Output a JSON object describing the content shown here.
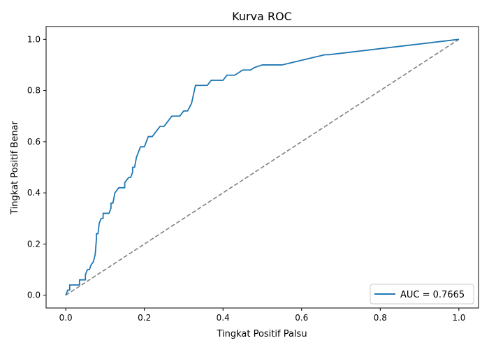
{
  "chart_data": {
    "type": "line",
    "title": "Kurva ROC",
    "xlabel": "Tingkat Positif Palsu",
    "ylabel": "Tingkat Positif Benar",
    "xlim": [
      -0.05,
      1.05
    ],
    "ylim": [
      -0.05,
      1.05
    ],
    "x_ticks": [
      "0.0",
      "0.2",
      "0.4",
      "0.6",
      "0.8",
      "1.0"
    ],
    "y_ticks": [
      "0.0",
      "0.2",
      "0.4",
      "0.6",
      "0.8",
      "1.0"
    ],
    "grid": false,
    "legend_position": "lower-right",
    "series": [
      {
        "name": "AUC = 0.7665",
        "color": "#1f77b4",
        "style": "solid",
        "x": [
          0.0,
          0.005,
          0.005,
          0.01,
          0.01,
          0.035,
          0.035,
          0.05,
          0.05,
          0.055,
          0.06,
          0.065,
          0.07,
          0.075,
          0.075,
          0.078,
          0.078,
          0.082,
          0.085,
          0.09,
          0.095,
          0.095,
          0.1,
          0.11,
          0.115,
          0.115,
          0.12,
          0.125,
          0.13,
          0.135,
          0.14,
          0.15,
          0.15,
          0.155,
          0.16,
          0.165,
          0.17,
          0.17,
          0.175,
          0.18,
          0.185,
          0.19,
          0.2,
          0.205,
          0.21,
          0.21,
          0.22,
          0.23,
          0.24,
          0.245,
          0.25,
          0.26,
          0.27,
          0.275,
          0.29,
          0.295,
          0.3,
          0.31,
          0.32,
          0.33,
          0.34,
          0.35,
          0.36,
          0.37,
          0.39,
          0.4,
          0.41,
          0.42,
          0.43,
          0.44,
          0.45,
          0.46,
          0.47,
          0.48,
          0.5,
          0.51,
          0.55,
          0.66,
          0.67,
          1.0
        ],
        "y": [
          0.0,
          0.02,
          0.02,
          0.02,
          0.04,
          0.04,
          0.06,
          0.06,
          0.08,
          0.1,
          0.1,
          0.12,
          0.13,
          0.16,
          0.16,
          0.22,
          0.24,
          0.24,
          0.28,
          0.3,
          0.3,
          0.32,
          0.32,
          0.32,
          0.34,
          0.36,
          0.36,
          0.4,
          0.41,
          0.42,
          0.42,
          0.42,
          0.44,
          0.45,
          0.46,
          0.46,
          0.48,
          0.5,
          0.5,
          0.54,
          0.56,
          0.58,
          0.58,
          0.6,
          0.62,
          0.62,
          0.62,
          0.64,
          0.66,
          0.66,
          0.66,
          0.68,
          0.7,
          0.7,
          0.7,
          0.71,
          0.72,
          0.72,
          0.75,
          0.82,
          0.82,
          0.82,
          0.82,
          0.84,
          0.84,
          0.84,
          0.86,
          0.86,
          0.86,
          0.87,
          0.88,
          0.88,
          0.88,
          0.89,
          0.9,
          0.9,
          0.9,
          0.94,
          0.94,
          1.0
        ]
      },
      {
        "name": "",
        "color": "#808080",
        "style": "dashed",
        "x": [
          0.0,
          1.0
        ],
        "y": [
          0.0,
          1.0
        ]
      }
    ]
  }
}
